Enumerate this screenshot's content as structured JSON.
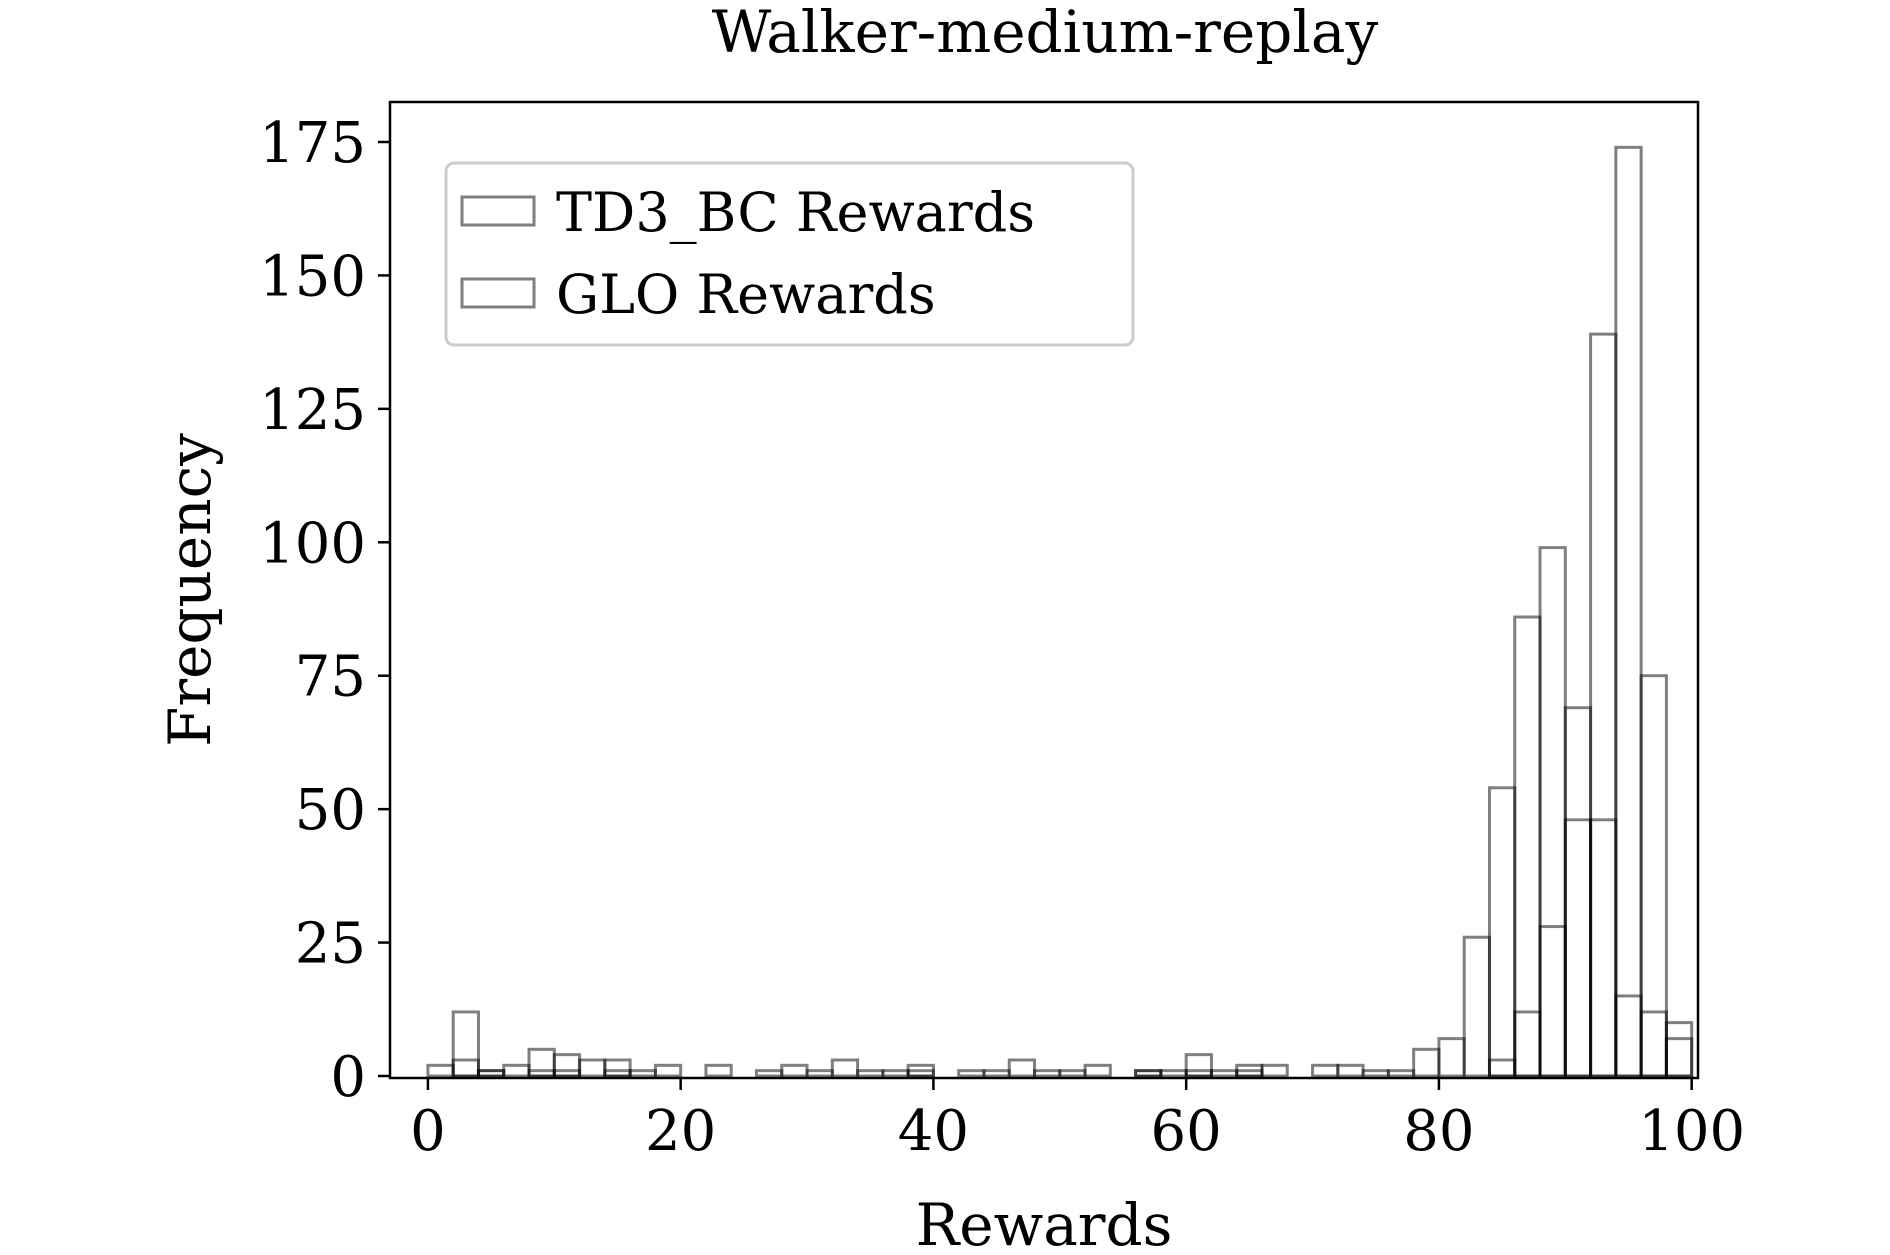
{
  "chart_data": {
    "type": "bar",
    "title": "Walker-medium-replay",
    "xlabel": "Rewards",
    "ylabel": "Frequency",
    "xlim": [
      -3,
      100.5
    ],
    "ylim": [
      0,
      175
    ],
    "xticks": [
      "0",
      "20",
      "40",
      "60",
      "80",
      "100"
    ],
    "yticks": [
      "0",
      "25",
      "50",
      "75",
      "100",
      "125",
      "150",
      "175"
    ],
    "legend_position": "top-left",
    "grid": false,
    "bin_width": 2,
    "series": [
      {
        "name": "TD3_BC Rewards",
        "color": "#000000",
        "bins": [
          [
            2,
            2
          ],
          [
            4,
            12
          ],
          [
            6,
            1
          ],
          [
            8,
            2
          ],
          [
            10,
            5
          ],
          [
            12,
            4
          ],
          [
            14,
            3
          ],
          [
            16,
            3
          ],
          [
            18,
            1
          ],
          [
            20,
            2
          ],
          [
            24,
            2
          ],
          [
            28,
            1
          ],
          [
            30,
            2
          ],
          [
            32,
            1
          ],
          [
            34,
            3
          ],
          [
            36,
            1
          ],
          [
            38,
            1
          ],
          [
            40,
            2
          ],
          [
            44,
            1
          ],
          [
            46,
            1
          ],
          [
            48,
            3
          ],
          [
            50,
            1
          ],
          [
            52,
            1
          ],
          [
            54,
            2
          ],
          [
            58,
            1
          ],
          [
            60,
            1
          ],
          [
            62,
            4
          ],
          [
            64,
            1
          ],
          [
            66,
            2
          ],
          [
            68,
            2
          ],
          [
            72,
            2
          ],
          [
            74,
            2
          ],
          [
            76,
            1
          ],
          [
            78,
            1
          ],
          [
            80,
            5
          ],
          [
            82,
            7
          ],
          [
            84,
            26
          ],
          [
            86,
            54
          ],
          [
            88,
            86
          ],
          [
            90,
            99
          ],
          [
            92,
            69
          ],
          [
            94,
            139
          ],
          [
            96,
            174
          ],
          [
            98,
            75
          ],
          [
            100,
            10
          ]
        ]
      },
      {
        "name": "GLO Rewards",
        "color": "#000000",
        "bins": [
          [
            4,
            3
          ],
          [
            6,
            1
          ],
          [
            10,
            1
          ],
          [
            12,
            1
          ],
          [
            16,
            1
          ],
          [
            40,
            1
          ],
          [
            58,
            1
          ],
          [
            62,
            1
          ],
          [
            66,
            1
          ],
          [
            86,
            3
          ],
          [
            88,
            12
          ],
          [
            90,
            28
          ],
          [
            92,
            48
          ],
          [
            94,
            48
          ],
          [
            96,
            15
          ],
          [
            98,
            12
          ],
          [
            100,
            7
          ]
        ]
      }
    ]
  }
}
